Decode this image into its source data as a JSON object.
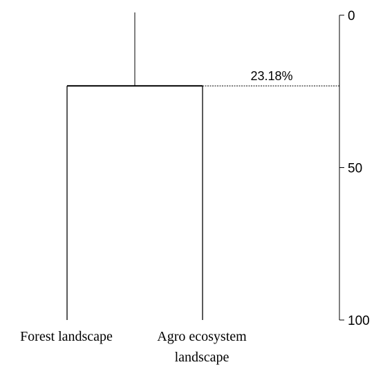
{
  "chart_data": {
    "type": "dendrogram",
    "leaves": [
      "Forest landscape",
      "Agro ecosystem landscape"
    ],
    "leaf_label_lines": [
      [
        "Forest landscape"
      ],
      [
        "Agro ecosystem",
        "landscape"
      ]
    ],
    "merge_height": 23.18,
    "merge_label": "23.18%",
    "axis": {
      "ticks": [
        0,
        50,
        100
      ],
      "tick_labels": [
        "0",
        "50",
        "100"
      ],
      "range": [
        0,
        100
      ],
      "inverted": true,
      "position": "right"
    },
    "grid": false,
    "colors": {
      "line": "#000000",
      "background": "#ffffff"
    }
  }
}
